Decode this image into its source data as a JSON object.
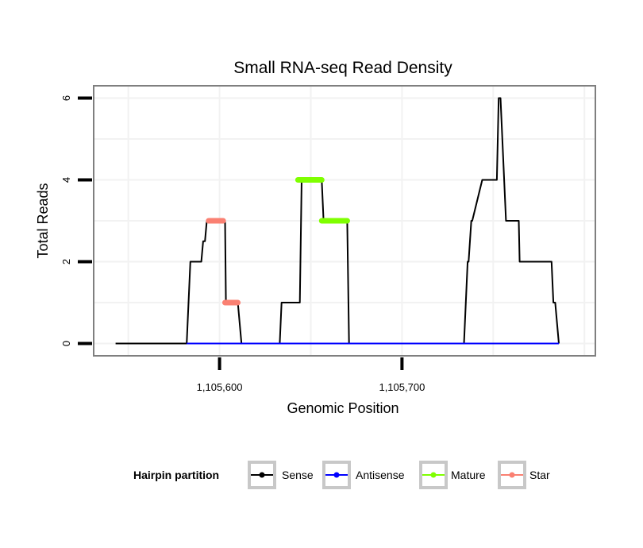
{
  "chart_data": {
    "type": "line",
    "title": "Small RNA-seq Read Density",
    "xlabel": "Genomic Position",
    "ylabel": "Total Reads",
    "xlim": [
      1105531,
      1105806
    ],
    "ylim": [
      -0.3,
      6.3
    ],
    "x_ticks": [
      {
        "value": 1105600,
        "label": "1,105,600"
      },
      {
        "value": 1105700,
        "label": "1,105,700"
      }
    ],
    "y_ticks": [
      {
        "value": 0,
        "label": "0"
      },
      {
        "value": 2,
        "label": "2"
      },
      {
        "value": 4,
        "label": "4"
      },
      {
        "value": 6,
        "label": "6"
      }
    ],
    "grid": true,
    "legend": {
      "title": "Hairpin partition",
      "position": "bottom",
      "entries": [
        {
          "name": "Sense",
          "color": "#000000"
        },
        {
          "name": "Antisense",
          "color": "#0000ff"
        },
        {
          "name": "Mature",
          "color": "#7fff00"
        },
        {
          "name": "Star",
          "color": "#fa8072"
        }
      ]
    },
    "series": [
      {
        "name": "Sense",
        "color": "#000000",
        "x": [
          1105543,
          1105582,
          1105584,
          1105590,
          1105591,
          1105592,
          1105593,
          1105594,
          1105594.5,
          1105600,
          1105601,
          1105603,
          1105603.5,
          1105609,
          1105610,
          1105612,
          1105632,
          1105633,
          1105634,
          1105644,
          1105645,
          1105656,
          1105657,
          1105670,
          1105671,
          1105698,
          1105705,
          1105734,
          1105736,
          1105736.5,
          1105738,
          1105738.5,
          1105744,
          1105745,
          1105752,
          1105753,
          1105754,
          1105757,
          1105758,
          1105764,
          1105764.5,
          1105770,
          1105771,
          1105782,
          1105783,
          1105784,
          1105786
        ],
        "y": [
          0,
          0,
          2,
          2,
          2.5,
          2.5,
          3,
          3,
          3,
          3,
          3,
          3,
          1,
          1,
          1,
          0,
          0,
          0,
          1,
          1,
          4,
          4,
          3,
          3,
          0,
          0,
          0,
          0,
          2,
          2,
          3,
          3,
          4,
          4,
          4,
          6,
          6,
          3,
          3,
          3,
          2,
          2,
          2,
          2,
          1,
          1,
          0
        ]
      },
      {
        "name": "Antisense",
        "color": "#0000ff",
        "x": [
          1105582,
          1105612,
          1105734,
          1105786
        ],
        "y": [
          0,
          0,
          0,
          0
        ]
      }
    ],
    "segments": [
      {
        "series": "Star",
        "color": "#fa8072",
        "x": [
          1105594,
          1105602
        ],
        "y": 3
      },
      {
        "series": "Star",
        "color": "#fa8072",
        "x": [
          1105603,
          1105610
        ],
        "y": 1
      },
      {
        "series": "Mature",
        "color": "#7fff00",
        "x": [
          1105643,
          1105656
        ],
        "y": 4
      },
      {
        "series": "Mature",
        "color": "#7fff00",
        "x": [
          1105656,
          1105670
        ],
        "y": 3
      }
    ]
  }
}
